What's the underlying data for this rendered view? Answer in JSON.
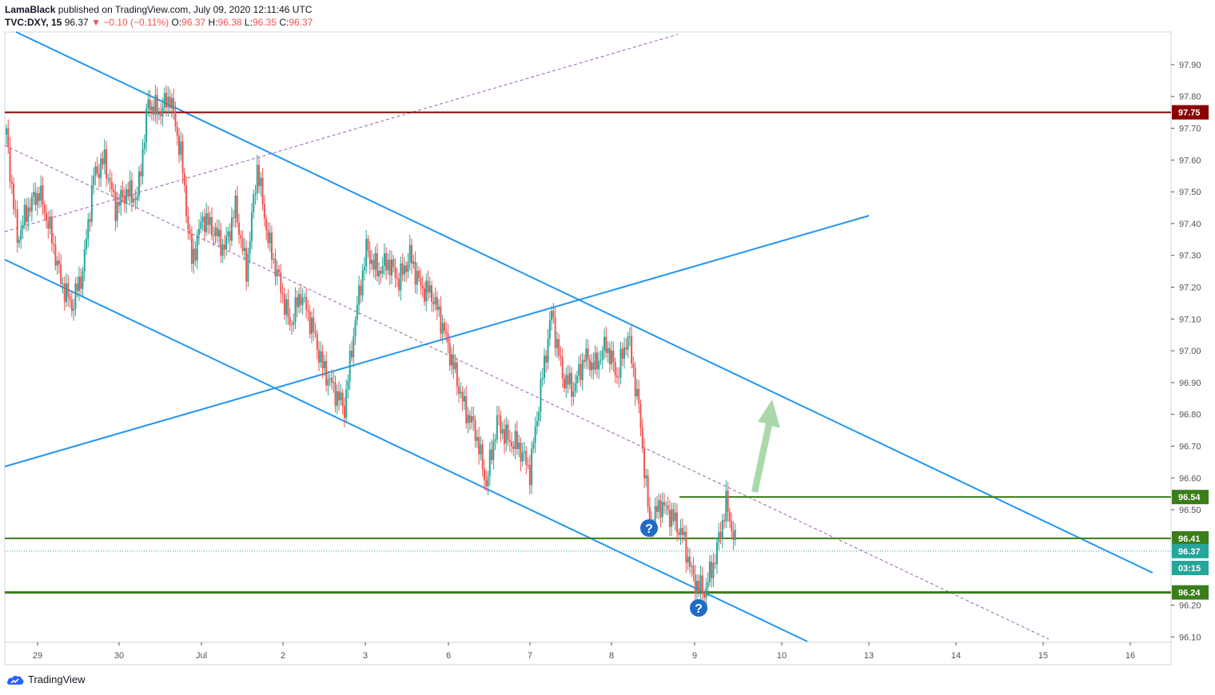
{
  "header": {
    "author": "LamaBlack",
    "published": "published on TradingView.com, July 09, 2020 12:11:46 UTC",
    "symbol": "TVC:DXY, 15",
    "last": "96.37",
    "arrow": "▼",
    "change": "−0.10 (−0.11%)",
    "o_label": "O:",
    "o": "96.37",
    "h_label": "H:",
    "h": "96.38",
    "l_label": "L:",
    "l": "96.35",
    "c_label": "C:",
    "c": "96.37"
  },
  "brand": {
    "name": "TradingView",
    "icon": "tradingview-cloud-icon"
  },
  "chart_data": {
    "type": "candlestick",
    "y_ticks": [
      "97.90",
      "97.80",
      "97.70",
      "97.60",
      "97.50",
      "97.40",
      "97.30",
      "97.20",
      "97.10",
      "97.00",
      "96.90",
      "96.80",
      "96.70",
      "96.60",
      "96.50",
      "96.20",
      "96.10"
    ],
    "x_ticks": [
      "29",
      "30",
      "Jul",
      "2",
      "3",
      "6",
      "7",
      "8",
      "9",
      "10",
      "13",
      "14",
      "15",
      "16"
    ],
    "ylim": [
      96.07,
      98.02
    ],
    "price_labels": [
      {
        "value": "97.75",
        "color": "#8b0000"
      },
      {
        "value": "96.54",
        "color": "#3a7d1a"
      },
      {
        "value": "96.41",
        "color": "#3a7d1a"
      },
      {
        "value": "96.37",
        "color": "#26a69a"
      },
      {
        "value": "03:15",
        "color": "#26a69a"
      },
      {
        "value": "96.24",
        "color": "#3a7d1a"
      }
    ],
    "horizontal_levels": [
      {
        "value": 97.75,
        "color": "#8b0000"
      },
      {
        "value": 96.54,
        "color": "#3a7d1a"
      },
      {
        "value": 96.41,
        "color": "#3a7d1a"
      },
      {
        "value": 96.24,
        "color": "#3a7d1a"
      }
    ],
    "ohlc_path": [
      97.68,
      97.35,
      97.45,
      97.5,
      97.38,
      97.22,
      97.14,
      97.25,
      97.55,
      97.6,
      97.45,
      97.5,
      97.48,
      97.78,
      97.75,
      97.8,
      97.62,
      97.28,
      97.42,
      97.38,
      97.32,
      97.45,
      97.25,
      97.58,
      97.35,
      97.22,
      97.08,
      97.18,
      97.08,
      96.95,
      96.88,
      96.82,
      97.1,
      97.32,
      97.25,
      97.28,
      97.22,
      97.3,
      97.2,
      97.18,
      97.08,
      96.95,
      96.82,
      96.75,
      96.58,
      96.78,
      96.72,
      96.7,
      96.62,
      96.88,
      97.12,
      96.92,
      96.88,
      96.98,
      96.95,
      97.02,
      96.92,
      97.05,
      96.82,
      96.45,
      96.52,
      96.48,
      96.42,
      96.28,
      96.24,
      96.35,
      96.52,
      96.37
    ],
    "candles": [
      [
        97.66,
        97.68,
        97.58
      ],
      [
        97.58,
        97.62,
        97.42
      ],
      [
        97.42,
        97.45,
        97.34
      ],
      [
        97.38,
        97.46,
        97.34
      ],
      [
        97.44,
        97.5,
        97.4
      ],
      [
        97.46,
        97.48,
        97.3
      ],
      [
        97.32,
        97.36,
        97.2
      ],
      [
        97.22,
        97.26,
        97.12
      ],
      [
        97.16,
        97.26,
        97.12
      ],
      [
        97.22,
        97.3,
        97.14
      ],
      [
        97.3,
        97.55,
        97.28
      ],
      [
        97.52,
        97.64,
        97.5
      ],
      [
        97.58,
        97.62,
        97.46
      ],
      [
        97.5,
        97.55,
        97.4
      ],
      [
        97.46,
        97.52,
        97.42
      ],
      [
        97.48,
        97.52,
        97.44
      ],
      [
        97.5,
        97.62,
        97.46
      ],
      [
        97.6,
        97.78,
        97.56
      ],
      [
        97.74,
        97.8,
        97.68
      ],
      [
        97.7,
        97.74,
        97.58
      ],
      [
        97.6,
        97.66,
        97.4
      ],
      [
        97.42,
        97.5,
        97.24
      ],
      [
        97.3,
        97.44,
        97.28
      ],
      [
        97.4,
        97.46,
        97.34
      ],
      [
        97.38,
        97.44,
        97.32
      ],
      [
        97.36,
        97.46,
        97.34
      ],
      [
        97.42,
        97.48,
        97.32
      ],
      [
        97.36,
        97.4,
        97.24
      ],
      [
        97.3,
        97.56,
        97.28
      ],
      [
        97.52,
        97.62,
        97.36
      ],
      [
        97.4,
        97.44,
        97.2
      ],
      [
        97.22,
        97.3,
        97.1
      ],
      [
        97.14,
        97.22,
        97.04
      ],
      [
        97.1,
        97.18,
        97.06
      ],
      [
        97.16,
        97.22,
        97.08
      ],
      [
        97.12,
        97.18,
        96.98
      ],
      [
        97.02,
        97.06,
        96.88
      ],
      [
        96.92,
        96.96,
        96.82
      ],
      [
        96.86,
        97.0,
        96.84
      ],
      [
        96.96,
        97.18,
        96.94
      ],
      [
        97.14,
        97.34,
        97.12
      ],
      [
        97.3,
        97.34,
        97.2
      ],
      [
        97.24,
        97.3,
        97.18
      ],
      [
        97.26,
        97.32,
        97.2
      ],
      [
        97.24,
        97.28,
        97.16
      ],
      [
        97.22,
        97.36,
        97.2
      ],
      [
        97.3,
        97.34,
        97.2
      ],
      [
        97.24,
        97.28,
        97.14
      ],
      [
        97.18,
        97.22,
        97.08
      ],
      [
        97.1,
        97.12,
        96.96
      ],
      [
        96.98,
        97.02,
        96.88
      ],
      [
        96.9,
        96.96,
        96.78
      ],
      [
        96.8,
        96.86,
        96.68
      ],
      [
        96.7,
        96.82,
        96.56
      ],
      [
        96.76,
        96.84,
        96.66
      ],
      [
        96.72,
        96.8,
        96.62
      ],
      [
        96.7,
        96.74,
        96.6
      ],
      [
        96.64,
        96.9,
        96.62
      ],
      [
        96.86,
        97.06,
        96.84
      ],
      [
        97.04,
        97.14,
        96.9
      ],
      [
        96.94,
        96.98,
        96.84
      ],
      [
        96.88,
        96.96,
        96.78
      ],
      [
        96.9,
        97.02,
        96.86
      ],
      [
        96.98,
        97.04,
        96.92
      ],
      [
        96.96,
        97.0,
        96.9
      ],
      [
        96.94,
        97.06,
        96.9
      ],
      [
        97.0,
        97.06,
        96.82
      ],
      [
        96.86,
        96.9,
        96.52
      ],
      [
        96.56,
        96.66,
        96.44
      ],
      [
        96.48,
        96.54,
        96.42
      ],
      [
        96.46,
        96.5,
        96.4
      ],
      [
        96.44,
        96.52,
        96.38
      ],
      [
        96.4,
        96.44,
        96.28
      ],
      [
        96.3,
        96.34,
        96.24
      ],
      [
        96.28,
        96.36,
        96.24
      ],
      [
        96.34,
        96.5,
        96.32
      ],
      [
        96.46,
        96.55,
        96.38
      ],
      [
        96.5,
        96.54,
        96.35
      ],
      [
        96.4,
        96.42,
        96.35
      ]
    ],
    "trend_lines": [
      {
        "from": [
          "27 Jun",
          98.02
        ],
        "to": [
          "13 Jul",
          96.3
        ],
        "style": "solid",
        "color": "#2196f3"
      },
      {
        "from": [
          "28 Jun",
          97.28
        ],
        "to": [
          "10 Jul",
          96.07
        ],
        "style": "solid",
        "color": "#2196f3"
      },
      {
        "from": [
          "28 Jun",
          96.64
        ],
        "to": [
          "13 Jul",
          97.43
        ],
        "style": "solid",
        "color": "#2196f3"
      },
      {
        "from": [
          "28 Jun",
          97.38
        ],
        "to": [
          "8 Jul",
          98.0
        ],
        "style": "dashed",
        "color": "#9c5fb5"
      },
      {
        "from": [
          "28 Jun",
          97.64
        ],
        "to": [
          "15 Jul",
          96.09
        ],
        "style": "dashed",
        "color": "#9c5fb5"
      }
    ],
    "annotations": [
      {
        "type": "arrow-up",
        "color": "#a5d6a7"
      },
      {
        "type": "question-icon",
        "color": "#1e6bc8"
      },
      {
        "type": "question-icon",
        "color": "#1e6bc8"
      }
    ],
    "colors": {
      "up": "#26a69a",
      "down": "#ef5350",
      "axis": "#50535e"
    }
  }
}
